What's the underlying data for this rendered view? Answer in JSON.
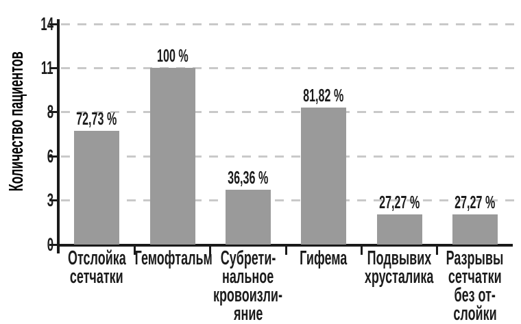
{
  "chart_data": {
    "type": "bar",
    "title": "",
    "xlabel": "",
    "ylabel": "Количество пациентов",
    "ylim": [
      0,
      14
    ],
    "ytick_labels": [
      "0",
      "3",
      "6",
      "8",
      "11",
      "14"
    ],
    "grid": "horizontal dashed gridlines, legend none",
    "categories": [
      "Отслойка сетчатки",
      "Гемофтальм",
      "Субретинальное кровоизлияние",
      "Гифема",
      "Подвывих хрусталика",
      "Разрывы сетчатки без отслойки"
    ],
    "category_lines": [
      [
        "Отслойка",
        "сетчатки"
      ],
      [
        "Гемофтальм"
      ],
      [
        "Субрети-",
        "нальное",
        "кровоизли-",
        "яние"
      ],
      [
        "Гифема"
      ],
      [
        "Подвывих",
        "хрусталика"
      ],
      [
        "Разрывы",
        "сетчатки",
        "без от-",
        "слойки"
      ]
    ],
    "values": [
      7.2,
      11.2,
      3.5,
      8.7,
      1.9,
      1.9
    ],
    "bar_labels": [
      "72,73 %",
      "100 %",
      "36,36 %",
      "81,82 %",
      "27,27 %",
      "27,27 %"
    ],
    "percent_values": [
      72.73,
      100,
      36.36,
      81.82,
      27.27,
      27.27
    ]
  },
  "colors": {
    "bar": "#9a9a9a",
    "grid": "#c9c9c9",
    "axis": "#1a1a1a",
    "text": "#1b1b1b",
    "background": "#ffffff"
  }
}
